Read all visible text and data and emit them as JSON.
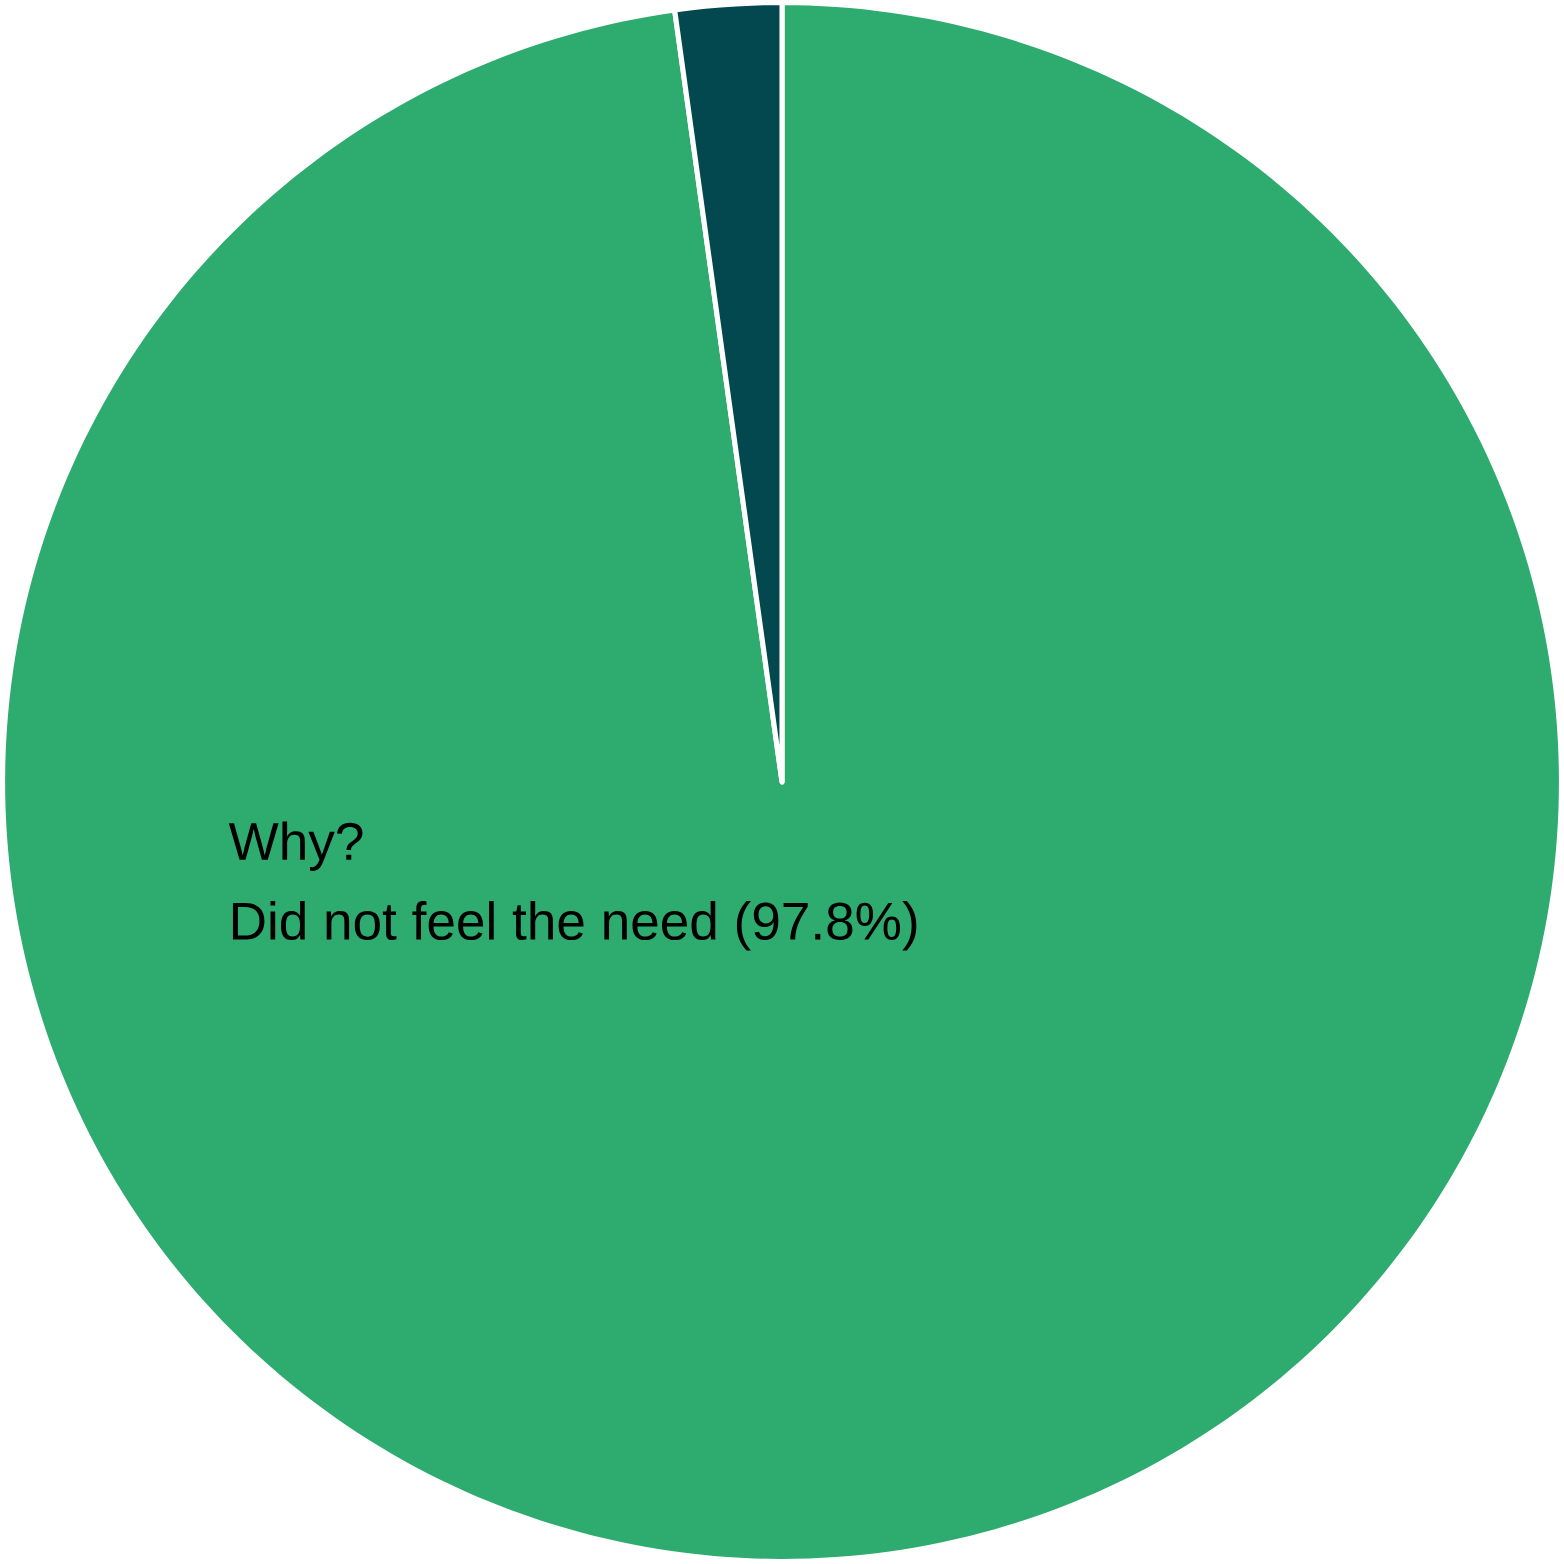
{
  "chart_data": {
    "type": "pie",
    "title": "Why?",
    "categories": [
      "Did not feel the need (97.8%)",
      null
    ],
    "values": [
      97.8,
      2.2
    ],
    "colors": [
      "#2eab6e",
      "#03474f"
    ]
  }
}
